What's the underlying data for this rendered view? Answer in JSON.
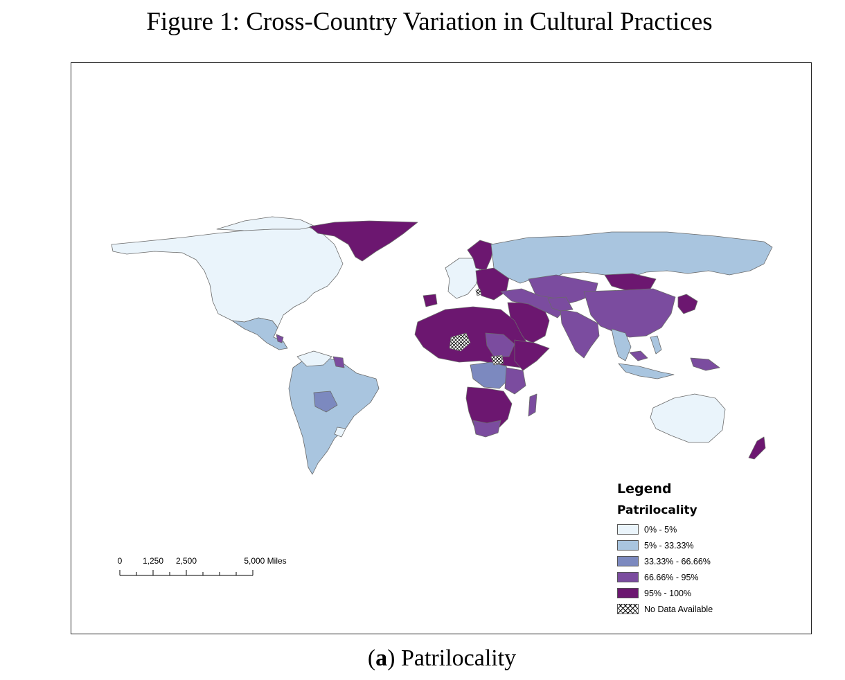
{
  "figure": {
    "title": "Figure 1: Cross-Country Variation in Cultural Practices",
    "caption_letter": "a",
    "caption_text": "Patrilocality"
  },
  "legend": {
    "title": "Legend",
    "subtitle": "Patrilocality",
    "items": [
      {
        "label": "0% - 5%",
        "color": "#eaf4fb"
      },
      {
        "label": "5% - 33.33%",
        "color": "#a9c5df"
      },
      {
        "label": "33.33% - 66.66%",
        "color": "#7c89bf"
      },
      {
        "label": "66.66% - 95%",
        "color": "#7b4c9f"
      },
      {
        "label": "95% - 100%",
        "color": "#6c1770"
      },
      {
        "label": "No Data Available",
        "pattern": "crosshatch"
      }
    ]
  },
  "scalebar": {
    "labels": [
      "0",
      "1,250",
      "2,500",
      "5,000 Miles"
    ],
    "values": [
      0,
      1250,
      2500,
      5000
    ]
  }
}
